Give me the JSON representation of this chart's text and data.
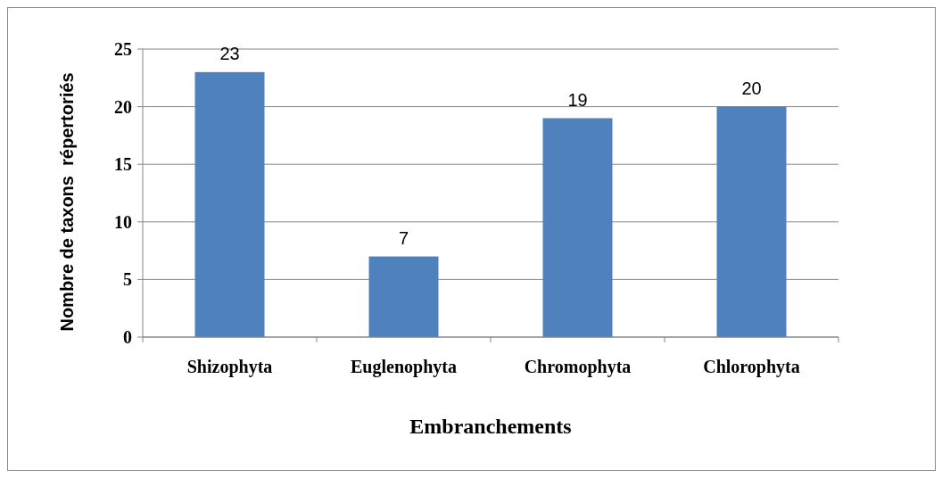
{
  "chart_data": {
    "type": "bar",
    "xlabel": "Embranchements",
    "ylabel": "Nombre de taxons  répertoriés",
    "categories": [
      "Shizophyta",
      "Euglenophyta",
      "Chromophyta",
      "Chlorophyta"
    ],
    "values": [
      23,
      7,
      19,
      20
    ],
    "color": "#4f81bd",
    "ylim": [
      0,
      25
    ],
    "yticks": [
      0,
      5,
      10,
      15,
      20,
      25
    ],
    "grid": "y",
    "data_labels": true
  }
}
